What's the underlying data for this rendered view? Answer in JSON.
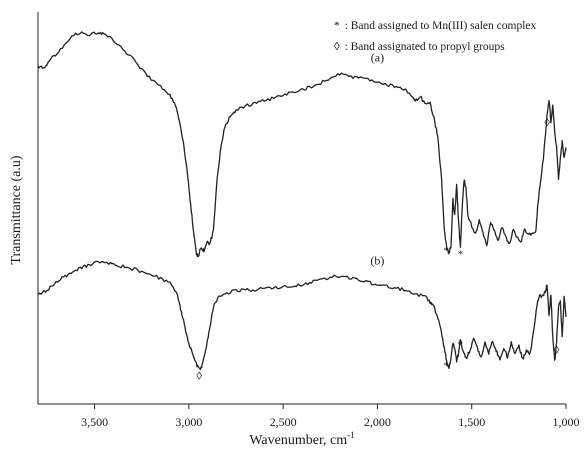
{
  "chart_data": {
    "type": "line",
    "xlabel": "Wavenumber, cm",
    "xlabel_superscript": "-1",
    "ylabel": "Transmittance (a.u)",
    "x_reversed": true,
    "xlim": [
      3800,
      1000
    ],
    "x_ticks": [
      3500,
      3000,
      2500,
      2000,
      1500,
      1000
    ],
    "x_tick_labels": [
      "3,500",
      "3,000",
      "2,500",
      "2,000",
      "1,500",
      "1,000"
    ],
    "grid": false,
    "legend": [
      {
        "symbol": "*",
        "text": ": Band assigned to Mn(III) salen complex"
      },
      {
        "symbol": "◊",
        "text": ": Band assignated to propyl groups"
      }
    ],
    "series": [
      {
        "name": "(a)",
        "points": [
          [
            3800,
            88
          ],
          [
            3770,
            85
          ],
          [
            3740,
            92
          ],
          [
            3700,
            100
          ],
          [
            3650,
            110
          ],
          [
            3600,
            118
          ],
          [
            3560,
            120
          ],
          [
            3520,
            117
          ],
          [
            3480,
            120
          ],
          [
            3450,
            118
          ],
          [
            3400,
            112
          ],
          [
            3350,
            103
          ],
          [
            3300,
            95
          ],
          [
            3250,
            85
          ],
          [
            3200,
            75
          ],
          [
            3150,
            68
          ],
          [
            3100,
            60
          ],
          [
            3070,
            50
          ],
          [
            3050,
            35
          ],
          [
            3030,
            15
          ],
          [
            3010,
            -10
          ],
          [
            2990,
            -45
          ],
          [
            2975,
            -70
          ],
          [
            2960,
            -92
          ],
          [
            2950,
            -93
          ],
          [
            2935,
            -85
          ],
          [
            2920,
            -88
          ],
          [
            2900,
            -80
          ],
          [
            2890,
            -82
          ],
          [
            2870,
            -70
          ],
          [
            2850,
            -20
          ],
          [
            2830,
            10
          ],
          [
            2810,
            30
          ],
          [
            2780,
            40
          ],
          [
            2750,
            45
          ],
          [
            2700,
            50
          ],
          [
            2650,
            52
          ],
          [
            2600,
            55
          ],
          [
            2550,
            57
          ],
          [
            2500,
            60
          ],
          [
            2450,
            62
          ],
          [
            2400,
            65
          ],
          [
            2350,
            68
          ],
          [
            2300,
            72
          ],
          [
            2250,
            76
          ],
          [
            2200,
            80
          ],
          [
            2150,
            78
          ],
          [
            2100,
            76
          ],
          [
            2050,
            75
          ],
          [
            2000,
            73
          ],
          [
            1950,
            70
          ],
          [
            1900,
            67
          ],
          [
            1850,
            65
          ],
          [
            1800,
            55
          ],
          [
            1770,
            58
          ],
          [
            1750,
            52
          ],
          [
            1720,
            52
          ],
          [
            1700,
            38
          ],
          [
            1680,
            20
          ],
          [
            1660,
            -20
          ],
          [
            1645,
            -70
          ],
          [
            1630,
            -88
          ],
          [
            1620,
            -90
          ],
          [
            1610,
            -85
          ],
          [
            1600,
            -40
          ],
          [
            1590,
            -55
          ],
          [
            1580,
            -25
          ],
          [
            1570,
            -60
          ],
          [
            1560,
            -85
          ],
          [
            1550,
            -45
          ],
          [
            1540,
            -20
          ],
          [
            1530,
            -30
          ],
          [
            1520,
            -55
          ],
          [
            1500,
            -65
          ],
          [
            1480,
            -72
          ],
          [
            1460,
            -60
          ],
          [
            1440,
            -70
          ],
          [
            1420,
            -85
          ],
          [
            1400,
            -60
          ],
          [
            1380,
            -70
          ],
          [
            1360,
            -80
          ],
          [
            1340,
            -65
          ],
          [
            1320,
            -75
          ],
          [
            1300,
            -82
          ],
          [
            1280,
            -68
          ],
          [
            1260,
            -75
          ],
          [
            1240,
            -80
          ],
          [
            1220,
            -68
          ],
          [
            1200,
            -73
          ],
          [
            1180,
            -72
          ],
          [
            1160,
            -70
          ],
          [
            1150,
            -45
          ],
          [
            1140,
            -30
          ],
          [
            1120,
            0
          ],
          [
            1100,
            40
          ],
          [
            1090,
            55
          ],
          [
            1080,
            35
          ],
          [
            1070,
            50
          ],
          [
            1060,
            25
          ],
          [
            1050,
            10
          ],
          [
            1040,
            -20
          ],
          [
            1030,
            0
          ],
          [
            1020,
            15
          ],
          [
            1010,
            0
          ],
          [
            1000,
            10
          ]
        ]
      },
      {
        "name": "(b)",
        "points": [
          [
            3800,
            82
          ],
          [
            3760,
            85
          ],
          [
            3720,
            90
          ],
          [
            3680,
            96
          ],
          [
            3640,
            100
          ],
          [
            3600,
            105
          ],
          [
            3560,
            108
          ],
          [
            3520,
            110
          ],
          [
            3480,
            112
          ],
          [
            3440,
            111
          ],
          [
            3400,
            110
          ],
          [
            3350,
            108
          ],
          [
            3300,
            106
          ],
          [
            3250,
            103
          ],
          [
            3200,
            100
          ],
          [
            3150,
            97
          ],
          [
            3100,
            93
          ],
          [
            3060,
            80
          ],
          [
            3040,
            65
          ],
          [
            3020,
            50
          ],
          [
            3000,
            35
          ],
          [
            2980,
            25
          ],
          [
            2960,
            15
          ],
          [
            2945,
            10
          ],
          [
            2930,
            14
          ],
          [
            2910,
            28
          ],
          [
            2890,
            50
          ],
          [
            2870,
            70
          ],
          [
            2840,
            80
          ],
          [
            2800,
            83
          ],
          [
            2750,
            85
          ],
          [
            2700,
            86
          ],
          [
            2650,
            86
          ],
          [
            2600,
            87
          ],
          [
            2550,
            88
          ],
          [
            2500,
            89
          ],
          [
            2450,
            90
          ],
          [
            2400,
            91
          ],
          [
            2350,
            93
          ],
          [
            2300,
            96
          ],
          [
            2250,
            98
          ],
          [
            2200,
            99
          ],
          [
            2150,
            97
          ],
          [
            2100,
            95
          ],
          [
            2050,
            93
          ],
          [
            2000,
            91
          ],
          [
            1950,
            89
          ],
          [
            1900,
            87
          ],
          [
            1850,
            86
          ],
          [
            1800,
            82
          ],
          [
            1750,
            80
          ],
          [
            1720,
            74
          ],
          [
            1700,
            70
          ],
          [
            1680,
            60
          ],
          [
            1660,
            45
          ],
          [
            1645,
            30
          ],
          [
            1630,
            15
          ],
          [
            1620,
            12
          ],
          [
            1610,
            20
          ],
          [
            1600,
            35
          ],
          [
            1590,
            30
          ],
          [
            1580,
            18
          ],
          [
            1570,
            25
          ],
          [
            1560,
            40
          ],
          [
            1550,
            30
          ],
          [
            1530,
            20
          ],
          [
            1510,
            28
          ],
          [
            1490,
            40
          ],
          [
            1470,
            30
          ],
          [
            1450,
            22
          ],
          [
            1430,
            35
          ],
          [
            1410,
            25
          ],
          [
            1390,
            38
          ],
          [
            1370,
            28
          ],
          [
            1350,
            20
          ],
          [
            1330,
            30
          ],
          [
            1310,
            22
          ],
          [
            1290,
            35
          ],
          [
            1270,
            25
          ],
          [
            1250,
            32
          ],
          [
            1230,
            20
          ],
          [
            1210,
            28
          ],
          [
            1190,
            25
          ],
          [
            1170,
            50
          ],
          [
            1150,
            75
          ],
          [
            1140,
            80
          ],
          [
            1130,
            78
          ],
          [
            1110,
            84
          ],
          [
            1100,
            90
          ],
          [
            1090,
            60
          ],
          [
            1080,
            82
          ],
          [
            1070,
            40
          ],
          [
            1060,
            18
          ],
          [
            1050,
            35
          ],
          [
            1040,
            70
          ],
          [
            1030,
            75
          ],
          [
            1020,
            40
          ],
          [
            1010,
            80
          ],
          [
            1000,
            60
          ]
        ]
      }
    ],
    "annotations": [
      {
        "symbol": "*",
        "series": "(a)",
        "x": 1635
      },
      {
        "symbol": "*",
        "series": "(a)",
        "x": 1560
      },
      {
        "symbol": "*",
        "series": "(b)",
        "x": 1635
      },
      {
        "symbol": "*",
        "series": "(b)",
        "x": 1560
      },
      {
        "symbol": "◊",
        "series": "(b)",
        "x": 2945
      },
      {
        "symbol": "◊",
        "series": "(a)",
        "x": 1100
      },
      {
        "symbol": "◊",
        "series": "(b)",
        "x": 1050
      }
    ]
  }
}
